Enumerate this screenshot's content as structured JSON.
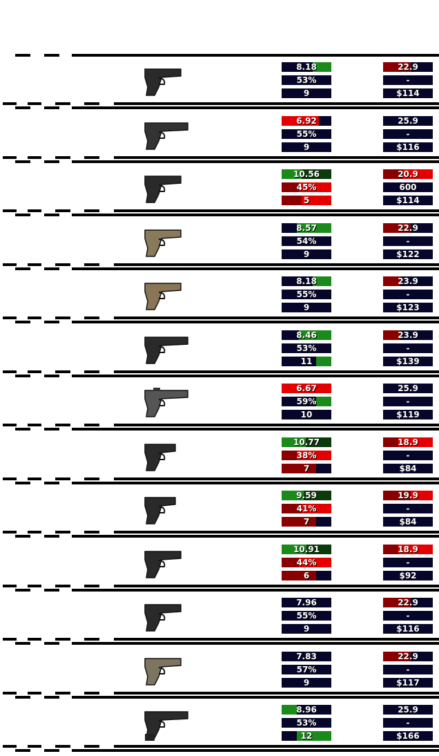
{
  "colors": {
    "navy": "#06062a",
    "green": "#1a8a1a",
    "dark_green": "#0b3a0b",
    "red": "#e50000",
    "dark_red": "#8a0000",
    "black": "#000000"
  },
  "weapons": [
    {
      "icon": "pistol-black-icon",
      "gun_color": "#2a2a2a",
      "left": [
        {
          "text": "8.18",
          "bg": "navy",
          "fill": "green",
          "fill_from": 0.62,
          "fill_to": 1.0
        },
        {
          "text": "53%",
          "bg": "navy"
        },
        {
          "text": "9",
          "bg": "navy"
        }
      ],
      "right": [
        {
          "text": "22.9",
          "bg": "navy",
          "fill": "dark_red",
          "fill_from": 0,
          "fill_to": 0.55
        },
        {
          "text": "-",
          "bg": "navy"
        },
        {
          "text": "$114",
          "bg": "navy"
        }
      ]
    },
    {
      "icon": "pistol-black-long-icon",
      "gun_color": "#333333",
      "left": [
        {
          "text": "6.92",
          "bg": "navy",
          "fill": "red",
          "fill_from": 0,
          "fill_to": 0.75
        },
        {
          "text": "55%",
          "bg": "navy"
        },
        {
          "text": "9",
          "bg": "navy"
        }
      ],
      "right": [
        {
          "text": "25.9",
          "bg": "navy"
        },
        {
          "text": "-",
          "bg": "navy"
        },
        {
          "text": "$116",
          "bg": "navy"
        }
      ]
    },
    {
      "icon": "pistol-black-icon",
      "gun_color": "#2a2a2a",
      "left": [
        {
          "text": "10.56",
          "bg": "dark_green",
          "fill": "green",
          "fill_from": 0,
          "fill_to": 0.4
        },
        {
          "text": "45%",
          "bg": "red",
          "fill": "dark_red",
          "fill_from": 0,
          "fill_to": 0.35
        },
        {
          "text": "5",
          "bg": "red",
          "fill": "dark_red",
          "fill_from": 0,
          "fill_to": 0.4
        }
      ],
      "right": [
        {
          "text": "20.9",
          "bg": "red",
          "fill": "dark_red",
          "fill_from": 0,
          "fill_to": 0.4
        },
        {
          "text": "600",
          "bg": "navy"
        },
        {
          "text": "$114",
          "bg": "navy"
        }
      ]
    },
    {
      "icon": "pistol-tan-icon",
      "gun_color": "#8a7a5c",
      "left": [
        {
          "text": "8.57",
          "bg": "navy",
          "fill": "green",
          "fill_from": 0.3,
          "fill_to": 1.0
        },
        {
          "text": "54%",
          "bg": "navy"
        },
        {
          "text": "9",
          "bg": "navy"
        }
      ],
      "right": [
        {
          "text": "22.9",
          "bg": "navy",
          "fill": "dark_red",
          "fill_from": 0,
          "fill_to": 0.55
        },
        {
          "text": "-",
          "bg": "navy"
        },
        {
          "text": "$122",
          "bg": "navy"
        }
      ]
    },
    {
      "icon": "pistol-tan-light-icon",
      "gun_color": "#8a7556",
      "left": [
        {
          "text": "8.18",
          "bg": "navy",
          "fill": "green",
          "fill_from": 0.62,
          "fill_to": 1.0
        },
        {
          "text": "55%",
          "bg": "navy"
        },
        {
          "text": "9",
          "bg": "navy"
        }
      ],
      "right": [
        {
          "text": "23.9",
          "bg": "navy",
          "fill": "dark_red",
          "fill_from": 0,
          "fill_to": 0.35
        },
        {
          "text": "-",
          "bg": "navy"
        },
        {
          "text": "$123",
          "bg": "navy"
        }
      ]
    },
    {
      "icon": "pistol-black-long-icon",
      "gun_color": "#2a2a2a",
      "left": [
        {
          "text": "8.46",
          "bg": "navy",
          "fill": "green",
          "fill_from": 0.35,
          "fill_to": 1.0
        },
        {
          "text": "53%",
          "bg": "navy"
        },
        {
          "text": "11",
          "bg": "navy",
          "fill": "green",
          "fill_from": 0.7,
          "fill_to": 1.0
        }
      ],
      "right": [
        {
          "text": "23.9",
          "bg": "navy",
          "fill": "dark_red",
          "fill_from": 0,
          "fill_to": 0.35
        },
        {
          "text": "-",
          "bg": "navy"
        },
        {
          "text": "$139",
          "bg": "navy"
        }
      ]
    },
    {
      "icon": "pistol-optic-icon",
      "gun_color": "#555555",
      "left": [
        {
          "text": "6.67",
          "bg": "navy",
          "fill": "red",
          "fill_from": 0,
          "fill_to": 1.0
        },
        {
          "text": "59%",
          "bg": "navy",
          "fill": "green",
          "fill_from": 0.7,
          "fill_to": 1.0
        },
        {
          "text": "10",
          "bg": "navy"
        }
      ],
      "right": [
        {
          "text": "25.9",
          "bg": "navy"
        },
        {
          "text": "-",
          "bg": "navy"
        },
        {
          "text": "$119",
          "bg": "navy"
        }
      ]
    },
    {
      "icon": "pistol-compact-icon",
      "gun_color": "#2a2a2a",
      "left": [
        {
          "text": "10.77",
          "bg": "dark_green",
          "fill": "green",
          "fill_from": 0,
          "fill_to": 0.48
        },
        {
          "text": "38%",
          "bg": "red",
          "fill": "dark_red",
          "fill_from": 0,
          "fill_to": 0.3
        },
        {
          "text": "7",
          "bg": "navy",
          "fill": "dark_red",
          "fill_from": 0,
          "fill_to": 0.7
        }
      ],
      "right": [
        {
          "text": "18.9",
          "bg": "red",
          "fill": "dark_red",
          "fill_from": 0,
          "fill_to": 0.3
        },
        {
          "text": "-",
          "bg": "navy"
        },
        {
          "text": "$84",
          "bg": "navy"
        }
      ]
    },
    {
      "icon": "pistol-compact-icon",
      "gun_color": "#2a2a2a",
      "left": [
        {
          "text": "9.59",
          "bg": "dark_green",
          "fill": "green",
          "fill_from": 0,
          "fill_to": 0.45
        },
        {
          "text": "41%",
          "bg": "red",
          "fill": "dark_red",
          "fill_from": 0,
          "fill_to": 0.4
        },
        {
          "text": "7",
          "bg": "navy",
          "fill": "dark_red",
          "fill_from": 0,
          "fill_to": 0.7
        }
      ],
      "right": [
        {
          "text": "19.9",
          "bg": "red",
          "fill": "dark_red",
          "fill_from": 0,
          "fill_to": 0.55
        },
        {
          "text": "-",
          "bg": "navy"
        },
        {
          "text": "$84",
          "bg": "navy"
        }
      ]
    },
    {
      "icon": "pistol-black-icon",
      "gun_color": "#2a2a2a",
      "left": [
        {
          "text": "10.91",
          "bg": "dark_green",
          "fill": "green",
          "fill_from": 0,
          "fill_to": 0.5
        },
        {
          "text": "44%",
          "bg": "red",
          "fill": "dark_red",
          "fill_from": 0,
          "fill_to": 0.35
        },
        {
          "text": "6",
          "bg": "navy",
          "fill": "dark_red",
          "fill_from": 0,
          "fill_to": 0.7
        }
      ],
      "right": [
        {
          "text": "18.9",
          "bg": "red",
          "fill": "dark_red",
          "fill_from": 0,
          "fill_to": 0.3
        },
        {
          "text": "-",
          "bg": "navy"
        },
        {
          "text": "$92",
          "bg": "navy"
        }
      ]
    },
    {
      "icon": "pistol-black-icon",
      "gun_color": "#2a2a2a",
      "left": [
        {
          "text": "7.96",
          "bg": "navy"
        },
        {
          "text": "55%",
          "bg": "navy"
        },
        {
          "text": "9",
          "bg": "navy"
        }
      ],
      "right": [
        {
          "text": "22.9",
          "bg": "navy",
          "fill": "dark_red",
          "fill_from": 0,
          "fill_to": 0.55
        },
        {
          "text": "-",
          "bg": "navy"
        },
        {
          "text": "$116",
          "bg": "navy"
        }
      ]
    },
    {
      "icon": "pistol-olive-icon",
      "gun_color": "#7d7560",
      "left": [
        {
          "text": "7.83",
          "bg": "navy"
        },
        {
          "text": "57%",
          "bg": "navy"
        },
        {
          "text": "9",
          "bg": "navy"
        }
      ],
      "right": [
        {
          "text": "22.9",
          "bg": "navy",
          "fill": "dark_red",
          "fill_from": 0,
          "fill_to": 0.55
        },
        {
          "text": "-",
          "bg": "navy"
        },
        {
          "text": "$117",
          "bg": "navy"
        }
      ]
    },
    {
      "icon": "pistol-extended-mag-icon",
      "gun_color": "#2a2a2a",
      "left": [
        {
          "text": "8.96",
          "bg": "navy",
          "fill": "green",
          "fill_from": 0,
          "fill_to": 0.3
        },
        {
          "text": "53%",
          "bg": "navy"
        },
        {
          "text": "12",
          "bg": "navy",
          "fill": "green",
          "fill_from": 0.3,
          "fill_to": 1.0
        }
      ],
      "right": [
        {
          "text": "25.9",
          "bg": "navy"
        },
        {
          "text": "-",
          "bg": "navy"
        },
        {
          "text": "$166",
          "bg": "navy"
        }
      ]
    }
  ]
}
